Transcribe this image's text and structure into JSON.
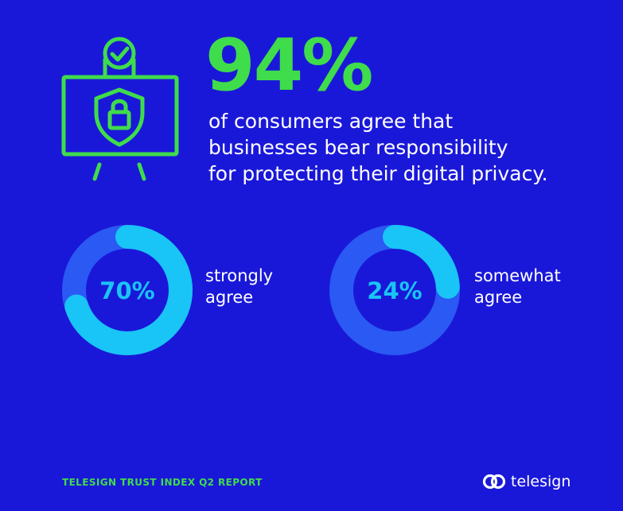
{
  "headline": {
    "value": "94%",
    "lines": [
      "of consumers agree that",
      "businesses bear responsibility",
      "for protecting their digital privacy."
    ]
  },
  "icons": {
    "main": "privacy-board-icon",
    "badge": "checkmark-circle-icon",
    "shield": "shield-lock-icon",
    "brand": "telesign-logo-icon"
  },
  "colors": {
    "background": "#1a18d8",
    "accent_green": "#3fdc4c",
    "donut_track": "#2a59f3",
    "donut_value": "#19c4f7"
  },
  "chart_data": [
    {
      "type": "pie",
      "style": "donut",
      "values": [
        70
      ],
      "value_label": "70%",
      "label_lines": [
        "strongly",
        "agree"
      ]
    },
    {
      "type": "pie",
      "style": "donut",
      "values": [
        24
      ],
      "value_label": "24%",
      "label_lines": [
        "somewhat",
        "agree"
      ]
    }
  ],
  "footer": {
    "title": "TELESIGN TRUST INDEX Q2 REPORT",
    "brand": "telesign"
  }
}
